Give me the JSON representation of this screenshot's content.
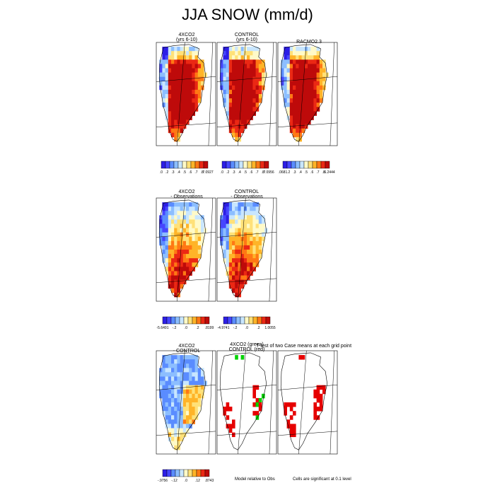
{
  "title": "JJA SNOW (mm/d)",
  "rows": [
    {
      "panels": [
        {
          "line1": "4XCO2",
          "line2": "(yrs 6-10)"
        },
        {
          "line1": "CONTROL",
          "line2": "(yrs 6-10)"
        },
        {
          "line1": "RACMO2.3",
          "line2": ""
        }
      ],
      "colorbars": [
        {
          "ticks": [
            ".0",
            ".2",
            ".3",
            ".4",
            ".5",
            ".6",
            ".7",
            ".8",
            "7.0927"
          ]
        },
        {
          "ticks": [
            ".0",
            ".2",
            ".3",
            ".4",
            ".5",
            ".6",
            ".7",
            ".8",
            "7.0956"
          ]
        },
        {
          "ticks": [
            ".0681",
            ".2",
            ".3",
            ".4",
            ".5",
            ".6",
            ".7",
            ".8",
            "6.2444"
          ]
        }
      ]
    },
    {
      "panels": [
        {
          "line1": "4XCO2",
          "line2": "- Observations"
        },
        {
          "line1": "CONTROL",
          "line2": "- Observations"
        }
      ],
      "colorbars": [
        {
          "ticks": [
            "-5.6491",
            "-.2",
            ".0",
            ".2",
            ".8199"
          ]
        },
        {
          "ticks": [
            "-4.9741",
            "-.2",
            ".0",
            ".2",
            "1.0055"
          ]
        }
      ]
    },
    {
      "panels": [
        {
          "line1": "4XCO2",
          "line2": "- CONTROL"
        },
        {
          "line1": "4XCO2 (green)",
          "line2": "CONTROL (red)"
        },
        {
          "line1": "",
          "line2": ""
        }
      ],
      "annotation": "T-test of two Case means at each grid point",
      "colorbars": [
        {
          "ticks": [
            "-.9756",
            "-.12",
            ".0",
            ".12",
            ".8743"
          ]
        }
      ],
      "notes": [
        "Model relative to Obs",
        "Cells are significant at 0.1 level"
      ]
    }
  ],
  "colors": {
    "scale": [
      "#2d1ee6",
      "#4646ff",
      "#5a8cff",
      "#8cbeff",
      "#c8e6ff",
      "#fffac8",
      "#ffe178",
      "#ffb428",
      "#ff7814",
      "#eb2814",
      "#be0a0a"
    ],
    "significant_4xco2": "#00d200",
    "significant_control": "#e60000"
  },
  "chart_data": {
    "type": "heatmap",
    "title": "JJA SNOW (mm/d)",
    "panels": [
      {
        "name": "4XCO2 (yrs 6-10)",
        "min": 0.0,
        "max": 7.0927,
        "levels": [
          0.2,
          0.3,
          0.4,
          0.5,
          0.6,
          0.7,
          0.8
        ]
      },
      {
        "name": "CONTROL (yrs 6-10)",
        "min": 0.0,
        "max": 7.0956,
        "levels": [
          0.2,
          0.3,
          0.4,
          0.5,
          0.6,
          0.7,
          0.8
        ]
      },
      {
        "name": "RACMO2.3",
        "min": 0.0681,
        "max": 6.2444,
        "levels": [
          0.2,
          0.3,
          0.4,
          0.5,
          0.6,
          0.7,
          0.8
        ]
      },
      {
        "name": "4XCO2 - Observations",
        "min": -5.6491,
        "max": 0.8199,
        "levels": [
          -0.2,
          0.0,
          0.2
        ]
      },
      {
        "name": "CONTROL - Observations",
        "min": -4.9741,
        "max": 1.0055,
        "levels": [
          -0.2,
          0.0,
          0.2
        ]
      },
      {
        "name": "4XCO2 - CONTROL",
        "min": -0.9756,
        "max": 0.8743,
        "levels": [
          -0.12,
          0.0,
          0.12
        ]
      },
      {
        "name": "T-test (4XCO2 green / CONTROL red)",
        "significance_level": 0.1
      }
    ]
  }
}
